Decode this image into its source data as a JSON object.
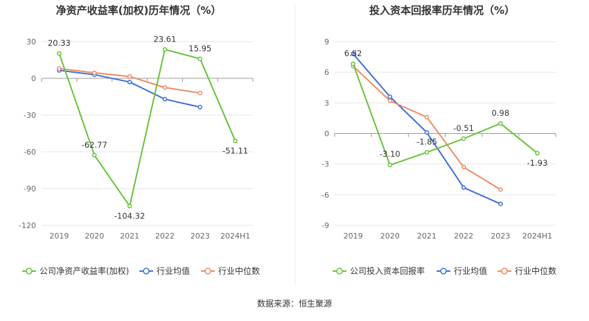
{
  "colors": {
    "company": "#67c23a",
    "avg": "#3e6fd8",
    "median": "#ee8a63",
    "grid": "#e5e5e5",
    "axis": "#999999",
    "tick": "#666666",
    "title": "#333333",
    "divider": "#eeeeee"
  },
  "source": "数据来源：恒生聚源",
  "chart_data": [
    {
      "type": "line",
      "title": "净资产收益率(加权)历年情况（%）",
      "categories": [
        "2019",
        "2020",
        "2021",
        "2022",
        "2023",
        "2024H1"
      ],
      "ylim": [
        -120,
        30
      ],
      "yticks": [
        30,
        0,
        -30,
        -60,
        -90,
        -120
      ],
      "ytick_labels": [
        "30",
        "0",
        "-30",
        "-60",
        "-90",
        "-120"
      ],
      "series": [
        {
          "name": "公司净资产收益率(加权)",
          "key": "company",
          "values": [
            20.33,
            -62.77,
            -104.32,
            23.61,
            15.95,
            -51.11
          ],
          "labels": [
            "20.33",
            "-62.77",
            "-104.32",
            "23.61",
            "15.95",
            "-51.11"
          ]
        },
        {
          "name": "行业均值",
          "key": "avg",
          "values": [
            6.5,
            3.0,
            -3.0,
            -17.0,
            -23.5,
            null
          ]
        },
        {
          "name": "行业中位数",
          "key": "median",
          "values": [
            8.0,
            4.5,
            1.5,
            -7.5,
            -12.0,
            null
          ]
        }
      ]
    },
    {
      "type": "line",
      "title": "投入资本回报率历年情况（%）",
      "categories": [
        "2019",
        "2020",
        "2021",
        "2022",
        "2023",
        "2024H1"
      ],
      "ylim": [
        -9,
        9
      ],
      "yticks": [
        9,
        6,
        3,
        0,
        -3,
        -6,
        -9
      ],
      "ytick_labels": [
        "9",
        "6",
        "3",
        "0",
        "-3",
        "-6",
        "-9"
      ],
      "series": [
        {
          "name": "公司投入资本回报率",
          "key": "company",
          "values": [
            6.82,
            -3.1,
            -1.85,
            -0.51,
            0.98,
            -1.93
          ],
          "labels": [
            "6.82",
            "-3.10",
            "-1.85",
            "-0.51",
            "0.98",
            "-1.93"
          ]
        },
        {
          "name": "行业均值",
          "key": "avg",
          "values": [
            7.8,
            3.6,
            0.1,
            -5.3,
            -6.9,
            null
          ]
        },
        {
          "name": "行业中位数",
          "key": "median",
          "values": [
            6.6,
            3.2,
            1.6,
            -3.3,
            -5.5,
            null
          ]
        }
      ]
    }
  ]
}
